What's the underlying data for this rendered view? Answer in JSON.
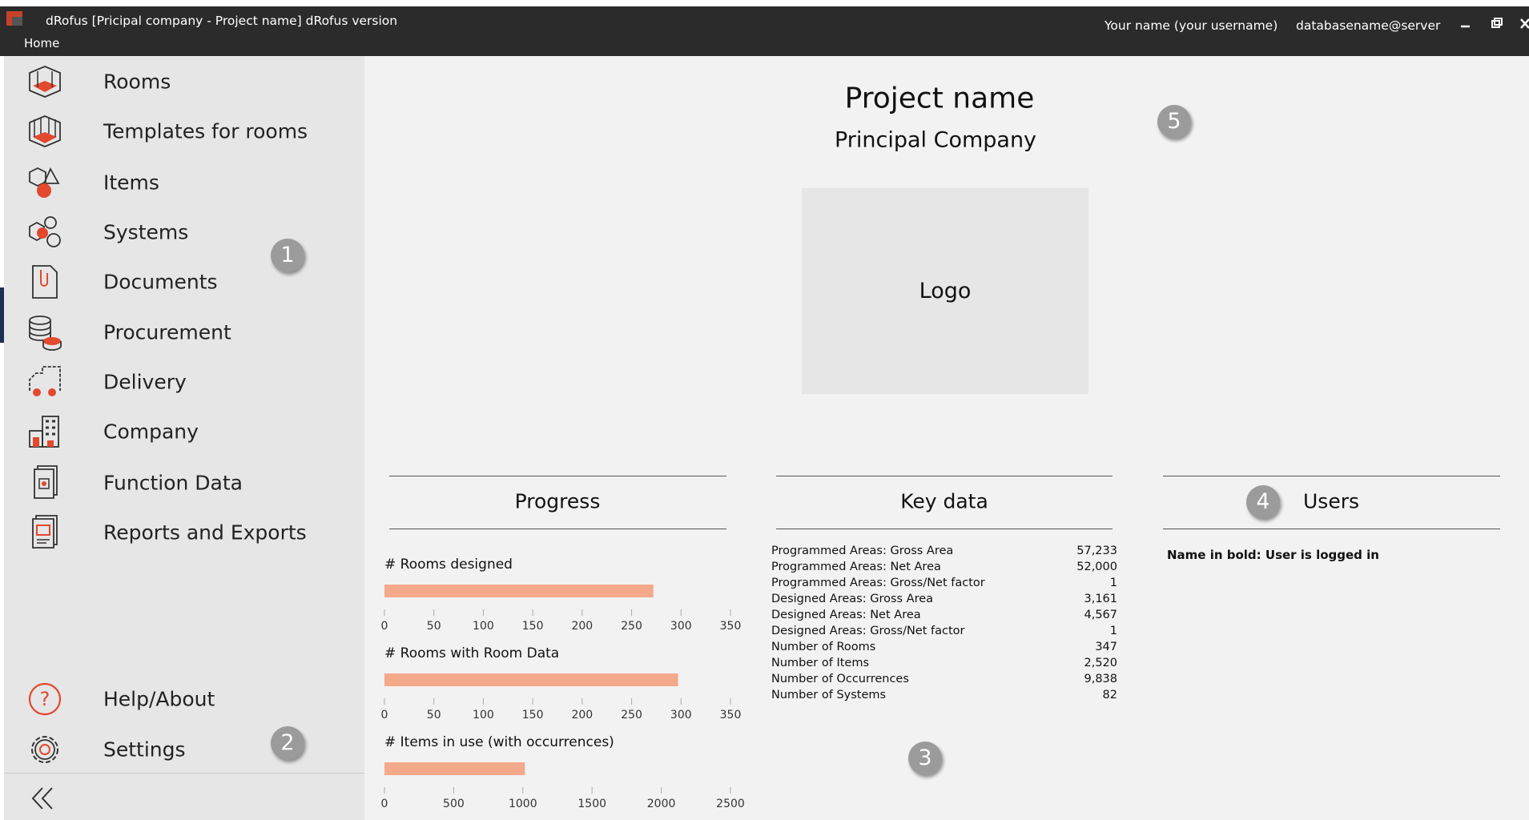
{
  "window": {
    "title": "dRofus [Pricipal company - Project name] dRofus version",
    "menu": "Home",
    "user": "Your name (your username)",
    "database": "databasename@server"
  },
  "sidebar": {
    "items": [
      "Rooms",
      "Templates for rooms",
      "Items",
      "Systems",
      "Documents",
      "Procurement",
      "Delivery",
      "Company",
      "Function Data",
      "Reports and Exports"
    ],
    "bottom_items": [
      "Help/About",
      "Settings"
    ]
  },
  "header": {
    "project_name": "Project name",
    "company": "Principal Company",
    "logo": "Logo"
  },
  "sections": {
    "progress": "Progress",
    "key_data": "Key data",
    "users": "Users"
  },
  "chart_data": [
    {
      "type": "bar",
      "title": "# Rooms designed",
      "values": [
        272
      ],
      "color": "#f4a98a",
      "xlim": [
        0,
        350
      ],
      "xticks": [
        0,
        50,
        100,
        150,
        200,
        250,
        300,
        350
      ]
    },
    {
      "type": "bar",
      "title": "# Rooms with Room Data",
      "values": [
        297
      ],
      "color": "#f4a98a",
      "xlim": [
        0,
        350
      ],
      "xticks": [
        0,
        50,
        100,
        150,
        200,
        250,
        300,
        350
      ]
    },
    {
      "type": "bar",
      "title": "# Items in use (with occurrences)",
      "values": [
        1015
      ],
      "color": "#f4a98a",
      "xlim": [
        0,
        2500
      ],
      "xticks": [
        0,
        500,
        1000,
        1500,
        2000,
        2500
      ]
    }
  ],
  "key_data": {
    "rows": [
      [
        "Programmed Areas: Gross Area",
        "57,233"
      ],
      [
        "Programmed Areas: Net Area",
        "52,000"
      ],
      [
        "Programmed Areas: Gross/Net factor",
        "1"
      ],
      [
        "Designed Areas: Gross Area",
        "3,161"
      ],
      [
        "Designed Areas: Net Area",
        "4,567"
      ],
      [
        "Designed Areas: Gross/Net factor",
        "1"
      ],
      [
        "Number of Rooms",
        "347"
      ],
      [
        "Number of Items",
        "2,520"
      ],
      [
        "Number of Occurrences",
        "9,838"
      ],
      [
        "Number of Systems",
        "82"
      ]
    ]
  },
  "users": {
    "note": "Name in bold: User is logged in"
  },
  "annotations": [
    "1",
    "2",
    "3",
    "4",
    "5"
  ]
}
